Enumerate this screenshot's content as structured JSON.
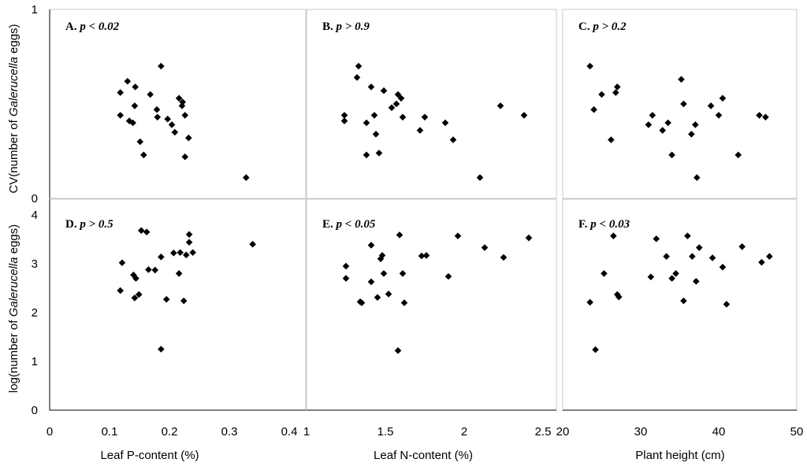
{
  "chart_data": [
    {
      "id": "A",
      "type": "scatter",
      "title_prefix": "A.",
      "title_stat": "p < 0.02",
      "xlim": [
        0,
        0.4
      ],
      "ylim": [
        0,
        1
      ],
      "points": [
        [
          0.118,
          0.56
        ],
        [
          0.118,
          0.44
        ],
        [
          0.13,
          0.62
        ],
        [
          0.133,
          0.41
        ],
        [
          0.139,
          0.4
        ],
        [
          0.142,
          0.49
        ],
        [
          0.143,
          0.59
        ],
        [
          0.151,
          0.3
        ],
        [
          0.157,
          0.23
        ],
        [
          0.168,
          0.55
        ],
        [
          0.179,
          0.47
        ],
        [
          0.18,
          0.43
        ],
        [
          0.186,
          0.7
        ],
        [
          0.197,
          0.42
        ],
        [
          0.204,
          0.39
        ],
        [
          0.209,
          0.35
        ],
        [
          0.216,
          0.53
        ],
        [
          0.221,
          0.49
        ],
        [
          0.222,
          0.51
        ],
        [
          0.226,
          0.44
        ],
        [
          0.226,
          0.22
        ],
        [
          0.232,
          0.32
        ],
        [
          0.328,
          0.11
        ]
      ]
    },
    {
      "id": "B",
      "type": "scatter",
      "title_prefix": "B.",
      "title_stat": "p > 0.9",
      "xlim": [
        1,
        2.5
      ],
      "ylim": [
        0,
        1
      ],
      "points": [
        [
          1.24,
          0.44
        ],
        [
          1.24,
          0.41
        ],
        [
          1.38,
          0.4
        ],
        [
          1.38,
          0.23
        ],
        [
          1.43,
          0.44
        ],
        [
          1.44,
          0.34
        ],
        [
          1.46,
          0.24
        ],
        [
          1.32,
          0.64
        ],
        [
          1.33,
          0.7
        ],
        [
          1.41,
          0.59
        ],
        [
          1.49,
          0.57
        ],
        [
          1.54,
          0.48
        ],
        [
          1.57,
          0.5
        ],
        [
          1.58,
          0.55
        ],
        [
          1.6,
          0.53
        ],
        [
          1.61,
          0.43
        ],
        [
          1.72,
          0.36
        ],
        [
          1.75,
          0.43
        ],
        [
          1.88,
          0.4
        ],
        [
          1.93,
          0.31
        ],
        [
          2.1,
          0.11
        ],
        [
          2.23,
          0.49
        ],
        [
          2.38,
          0.44
        ]
      ]
    },
    {
      "id": "C",
      "type": "scatter",
      "title_prefix": "C.",
      "title_stat": "p > 0.2",
      "xlim": [
        20,
        50
      ],
      "ylim": [
        0,
        1
      ],
      "points": [
        [
          23.5,
          0.7
        ],
        [
          24.0,
          0.47
        ],
        [
          25.0,
          0.55
        ],
        [
          26.2,
          0.31
        ],
        [
          26.8,
          0.56
        ],
        [
          27.0,
          0.59
        ],
        [
          31.0,
          0.39
        ],
        [
          31.5,
          0.44
        ],
        [
          32.8,
          0.36
        ],
        [
          33.5,
          0.4
        ],
        [
          34.0,
          0.23
        ],
        [
          35.2,
          0.63
        ],
        [
          35.5,
          0.5
        ],
        [
          36.5,
          0.34
        ],
        [
          37.0,
          0.39
        ],
        [
          37.2,
          0.11
        ],
        [
          39.0,
          0.49
        ],
        [
          40.0,
          0.44
        ],
        [
          40.5,
          0.53
        ],
        [
          42.5,
          0.23
        ],
        [
          45.2,
          0.44
        ],
        [
          46.0,
          0.43
        ]
      ]
    },
    {
      "id": "D",
      "type": "scatter",
      "title_prefix": "D.",
      "title_stat": "p > 0.5",
      "xlim": [
        0,
        0.4
      ],
      "ylim": [
        0,
        4
      ],
      "points": [
        [
          0.118,
          2.45
        ],
        [
          0.121,
          3.02
        ],
        [
          0.14,
          2.77
        ],
        [
          0.142,
          2.3
        ],
        [
          0.144,
          2.7
        ],
        [
          0.149,
          2.37
        ],
        [
          0.153,
          3.68
        ],
        [
          0.162,
          3.65
        ],
        [
          0.165,
          2.88
        ],
        [
          0.176,
          2.87
        ],
        [
          0.186,
          3.14
        ],
        [
          0.186,
          1.25
        ],
        [
          0.195,
          2.27
        ],
        [
          0.207,
          3.22
        ],
        [
          0.216,
          2.8
        ],
        [
          0.218,
          3.23
        ],
        [
          0.224,
          2.24
        ],
        [
          0.228,
          3.18
        ],
        [
          0.233,
          3.44
        ],
        [
          0.233,
          3.6
        ],
        [
          0.239,
          3.23
        ],
        [
          0.339,
          3.4
        ]
      ]
    },
    {
      "id": "E",
      "type": "scatter",
      "title_prefix": "E.",
      "title_stat": "p < 0.05",
      "xlim": [
        1,
        2.5
      ],
      "ylim": [
        0,
        4
      ],
      "points": [
        [
          1.25,
          2.95
        ],
        [
          1.25,
          2.7
        ],
        [
          1.34,
          2.22
        ],
        [
          1.35,
          2.2
        ],
        [
          1.41,
          3.38
        ],
        [
          1.41,
          2.63
        ],
        [
          1.45,
          2.31
        ],
        [
          1.47,
          3.1
        ],
        [
          1.48,
          3.17
        ],
        [
          1.49,
          2.8
        ],
        [
          1.52,
          2.38
        ],
        [
          1.58,
          1.22
        ],
        [
          1.59,
          3.59
        ],
        [
          1.61,
          2.8
        ],
        [
          1.62,
          2.2
        ],
        [
          1.73,
          3.16
        ],
        [
          1.76,
          3.17
        ],
        [
          1.9,
          2.74
        ],
        [
          1.96,
          3.57
        ],
        [
          2.13,
          3.33
        ],
        [
          2.25,
          3.13
        ],
        [
          2.41,
          3.53
        ]
      ]
    },
    {
      "id": "F",
      "type": "scatter",
      "title_prefix": "F.",
      "title_stat": "p < 0.03",
      "xlim": [
        20,
        50
      ],
      "ylim": [
        0,
        4
      ],
      "points": [
        [
          23.5,
          2.21
        ],
        [
          24.2,
          1.24
        ],
        [
          25.3,
          2.8
        ],
        [
          26.5,
          3.57
        ],
        [
          27.0,
          2.37
        ],
        [
          27.2,
          2.32
        ],
        [
          31.3,
          2.73
        ],
        [
          32.0,
          3.51
        ],
        [
          33.3,
          3.15
        ],
        [
          34.0,
          2.7
        ],
        [
          34.5,
          2.8
        ],
        [
          35.5,
          2.24
        ],
        [
          36.0,
          3.57
        ],
        [
          36.6,
          3.15
        ],
        [
          37.1,
          2.64
        ],
        [
          37.5,
          3.33
        ],
        [
          39.2,
          3.12
        ],
        [
          40.5,
          2.93
        ],
        [
          41.0,
          2.17
        ],
        [
          43.0,
          3.35
        ],
        [
          45.5,
          3.03
        ],
        [
          46.5,
          3.15
        ]
      ]
    }
  ],
  "y_labels": {
    "top_prefix": "CV(number of ",
    "top_italic": "Galerucella",
    "top_suffix": "  eggs)",
    "bottom_prefix": "log(number of ",
    "bottom_italic": "Galerucella",
    "bottom_suffix": "  eggs)"
  },
  "y_ticks_top": [
    "1",
    "0"
  ],
  "y_ticks_bottom": [
    "4",
    "3",
    "2",
    "1",
    "0"
  ],
  "x_ticks": {
    "col1": [
      "0",
      "0.1",
      "0.2",
      "0.3",
      "0.4"
    ],
    "col2": [
      "1",
      "1.5",
      "2",
      "2.5"
    ],
    "col3": [
      "20",
      "30",
      "40",
      "50"
    ]
  },
  "x_labels": {
    "col1": "Leaf P-content (%)",
    "col2": "Leaf N-content (%)",
    "col3": "Plant height (cm)"
  },
  "colors": {
    "marker": "#000000",
    "frame": "#c8c8c8",
    "background": "#ffffff"
  }
}
